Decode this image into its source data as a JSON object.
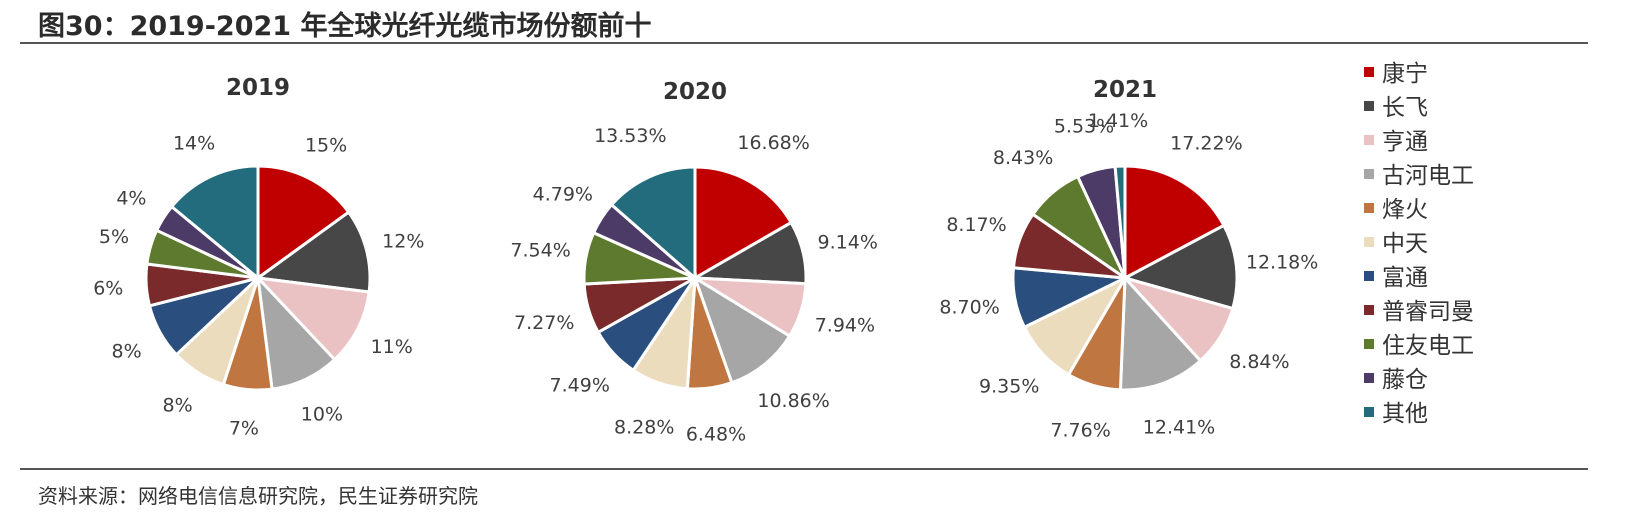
{
  "figure_title": "图30：2019-2021 年全球光纤光缆市场份额前十",
  "source_note": "资料来源：网络电信信息研究院，民生证券研究院",
  "legend": {
    "items": [
      {
        "label": "康宁",
        "color": "#c00000"
      },
      {
        "label": "长飞",
        "color": "#474747"
      },
      {
        "label": "亨通",
        "color": "#ebc2c4"
      },
      {
        "label": "古河电工",
        "color": "#a6a6a6"
      },
      {
        "label": "烽火",
        "color": "#c07641"
      },
      {
        "label": "中天",
        "color": "#ecdcbe"
      },
      {
        "label": "富通",
        "color": "#2a4e7d"
      },
      {
        "label": "普睿司曼",
        "color": "#7a2a2a"
      },
      {
        "label": "住友电工",
        "color": "#5e7a2e"
      },
      {
        "label": "藤仓",
        "color": "#4c3b66"
      },
      {
        "label": "其他",
        "color": "#236c7d"
      }
    ]
  },
  "chart_data": [
    {
      "type": "pie",
      "title": "2019",
      "categories": [
        "康宁",
        "长飞",
        "亨通",
        "古河电工",
        "烽火",
        "中天",
        "富通",
        "普睿司曼",
        "住友电工",
        "藤仓",
        "其他"
      ],
      "values": [
        15,
        12,
        11,
        10,
        7,
        8,
        8,
        6,
        5,
        4,
        14
      ],
      "labels": [
        "15%",
        "12%",
        "11%",
        "10%",
        "7%",
        "8%",
        "8%",
        "6%",
        "5%",
        "4%",
        "14%"
      ]
    },
    {
      "type": "pie",
      "title": "2020",
      "categories": [
        "康宁",
        "长飞",
        "亨通",
        "古河电工",
        "烽火",
        "中天",
        "富通",
        "普睿司曼",
        "住友电工",
        "藤仓",
        "其他"
      ],
      "values": [
        16.68,
        9.14,
        7.94,
        10.86,
        6.48,
        8.28,
        7.49,
        7.27,
        7.54,
        4.79,
        13.53
      ],
      "labels": [
        "16.68%",
        "9.14%",
        "7.94%",
        "10.86%",
        "6.48%",
        "8.28%",
        "7.49%",
        "7.27%",
        "7.54%",
        "4.79%",
        "13.53%"
      ]
    },
    {
      "type": "pie",
      "title": "2021",
      "categories": [
        "康宁",
        "长飞",
        "亨通",
        "古河电工",
        "烽火",
        "中天",
        "富通",
        "普睿司曼",
        "住友电工",
        "藤仓",
        "其他"
      ],
      "values": [
        17.22,
        12.18,
        8.84,
        12.41,
        7.76,
        9.35,
        8.7,
        8.17,
        8.43,
        5.53,
        1.41
      ],
      "labels": [
        "17.22%",
        "12.18%",
        "8.84%",
        "12.41%",
        "7.76%",
        "9.35%",
        "8.70%",
        "8.17%",
        "8.43%",
        "5.53%",
        "1.41%"
      ]
    }
  ]
}
